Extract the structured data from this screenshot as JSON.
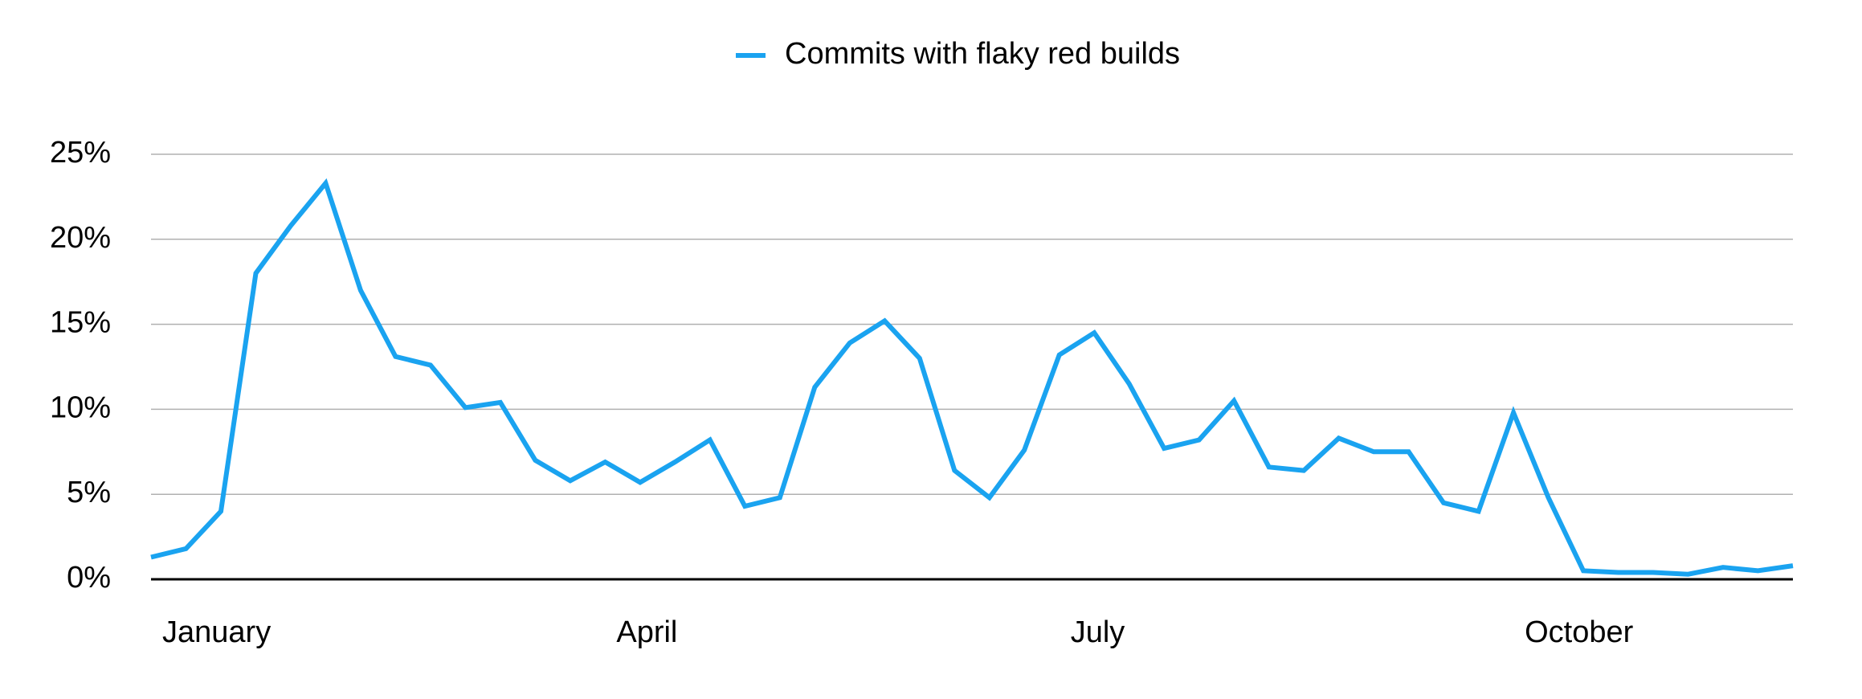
{
  "chart_data": {
    "type": "line",
    "categories": [
      "January",
      null,
      null,
      null,
      null,
      null,
      null,
      null,
      null,
      null,
      null,
      null,
      null,
      "April",
      null,
      null,
      null,
      null,
      null,
      null,
      null,
      null,
      null,
      null,
      null,
      null,
      "July",
      null,
      null,
      null,
      null,
      null,
      null,
      null,
      null,
      null,
      null,
      null,
      null,
      "October",
      null,
      null,
      null,
      null,
      null,
      null,
      null,
      null
    ],
    "series": [
      {
        "name": "Commits with flaky red builds",
        "color": "#1aa3f0",
        "values": [
          1.3,
          1.8,
          4.0,
          18.0,
          20.8,
          23.3,
          17.0,
          13.1,
          12.6,
          10.1,
          10.4,
          7.0,
          5.8,
          6.9,
          5.7,
          6.9,
          8.2,
          4.3,
          4.8,
          11.3,
          13.9,
          15.2,
          13.0,
          6.4,
          4.8,
          7.6,
          13.2,
          14.5,
          11.5,
          7.7,
          8.2,
          10.5,
          6.6,
          6.4,
          8.3,
          7.5,
          7.5,
          4.5,
          4.0,
          9.8,
          4.8,
          0.5,
          0.4,
          0.4,
          0.3,
          0.7,
          0.5,
          0.8
        ]
      }
    ],
    "ylim": [
      0,
      25
    ],
    "yticks": [
      {
        "value": 0,
        "label": "0%"
      },
      {
        "value": 5,
        "label": "5%"
      },
      {
        "value": 10,
        "label": "10%"
      },
      {
        "value": 15,
        "label": "15%"
      },
      {
        "value": 20,
        "label": "20%"
      },
      {
        "value": 25,
        "label": "25%"
      }
    ],
    "grid": true,
    "legend": "top"
  }
}
